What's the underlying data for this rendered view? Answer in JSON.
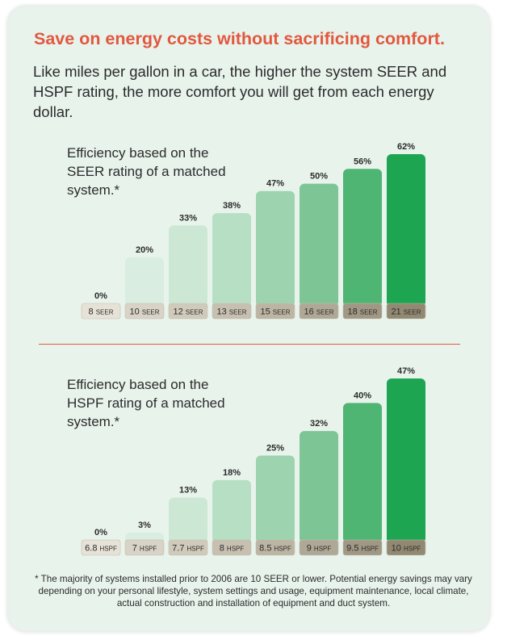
{
  "headline": "Save on energy costs without sacrificing comfort.",
  "intro": "Like miles per gallon in a car, the higher the system SEER and HSPF rating, the more comfort you will get from each energy dollar.",
  "footnote": "* The majority of systems installed prior to 2006 are 10 SEER or lower. Potential energy savings may vary depending on your personal lifestyle, system settings and usage, equipment maintenance, local climate, actual construction and installation of equipment and duct system.",
  "colors": {
    "accent": "#e2583e",
    "bars": [
      "#d9ede0",
      "#d9ede0",
      "#cce8d5",
      "#b7dfc3",
      "#9dd3ae",
      "#7dc594",
      "#4fb573",
      "#1da552"
    ],
    "tabs": [
      "#e6e2d7",
      "#d8d3c6",
      "#d0cabb",
      "#c7c0b0",
      "#bdb5a3",
      "#b0a896",
      "#a09784",
      "#928972"
    ]
  },
  "chart_data": [
    {
      "type": "bar",
      "title": "Efficiency based on the SEER rating of a matched system.*",
      "categories": [
        "8 SEER",
        "10 SEER",
        "12 SEER",
        "13 SEER",
        "15 SEER",
        "16 SEER",
        "18 SEER",
        "21 SEER"
      ],
      "category_values": [
        "8",
        "10",
        "12",
        "13",
        "15",
        "16",
        "18",
        "21"
      ],
      "unit": "SEER",
      "values": [
        0,
        20,
        33,
        38,
        47,
        50,
        56,
        62
      ],
      "value_labels": [
        "0%",
        "20%",
        "33%",
        "38%",
        "47%",
        "50%",
        "56%",
        "62%"
      ],
      "ylim": [
        0,
        62
      ],
      "xlabel": "",
      "ylabel": ""
    },
    {
      "type": "bar",
      "title": "Efficiency based on the HSPF rating of a matched system.*",
      "categories": [
        "6.8 HSPF",
        "7 HSPF",
        "7.7 HSPF",
        "8 HSPF",
        "8.5 HSPF",
        "9 HSPF",
        "9.5 HSPF",
        "10 HSPF"
      ],
      "category_values": [
        "6.8",
        "7",
        "7.7",
        "8",
        "8.5",
        "9",
        "9.5",
        "10"
      ],
      "unit": "HSPF",
      "values": [
        0,
        3,
        13,
        18,
        25,
        32,
        40,
        47
      ],
      "value_labels": [
        "0%",
        "3%",
        "13%",
        "18%",
        "25%",
        "32%",
        "40%",
        "47%"
      ],
      "ylim": [
        0,
        47
      ],
      "xlabel": "",
      "ylabel": ""
    }
  ]
}
